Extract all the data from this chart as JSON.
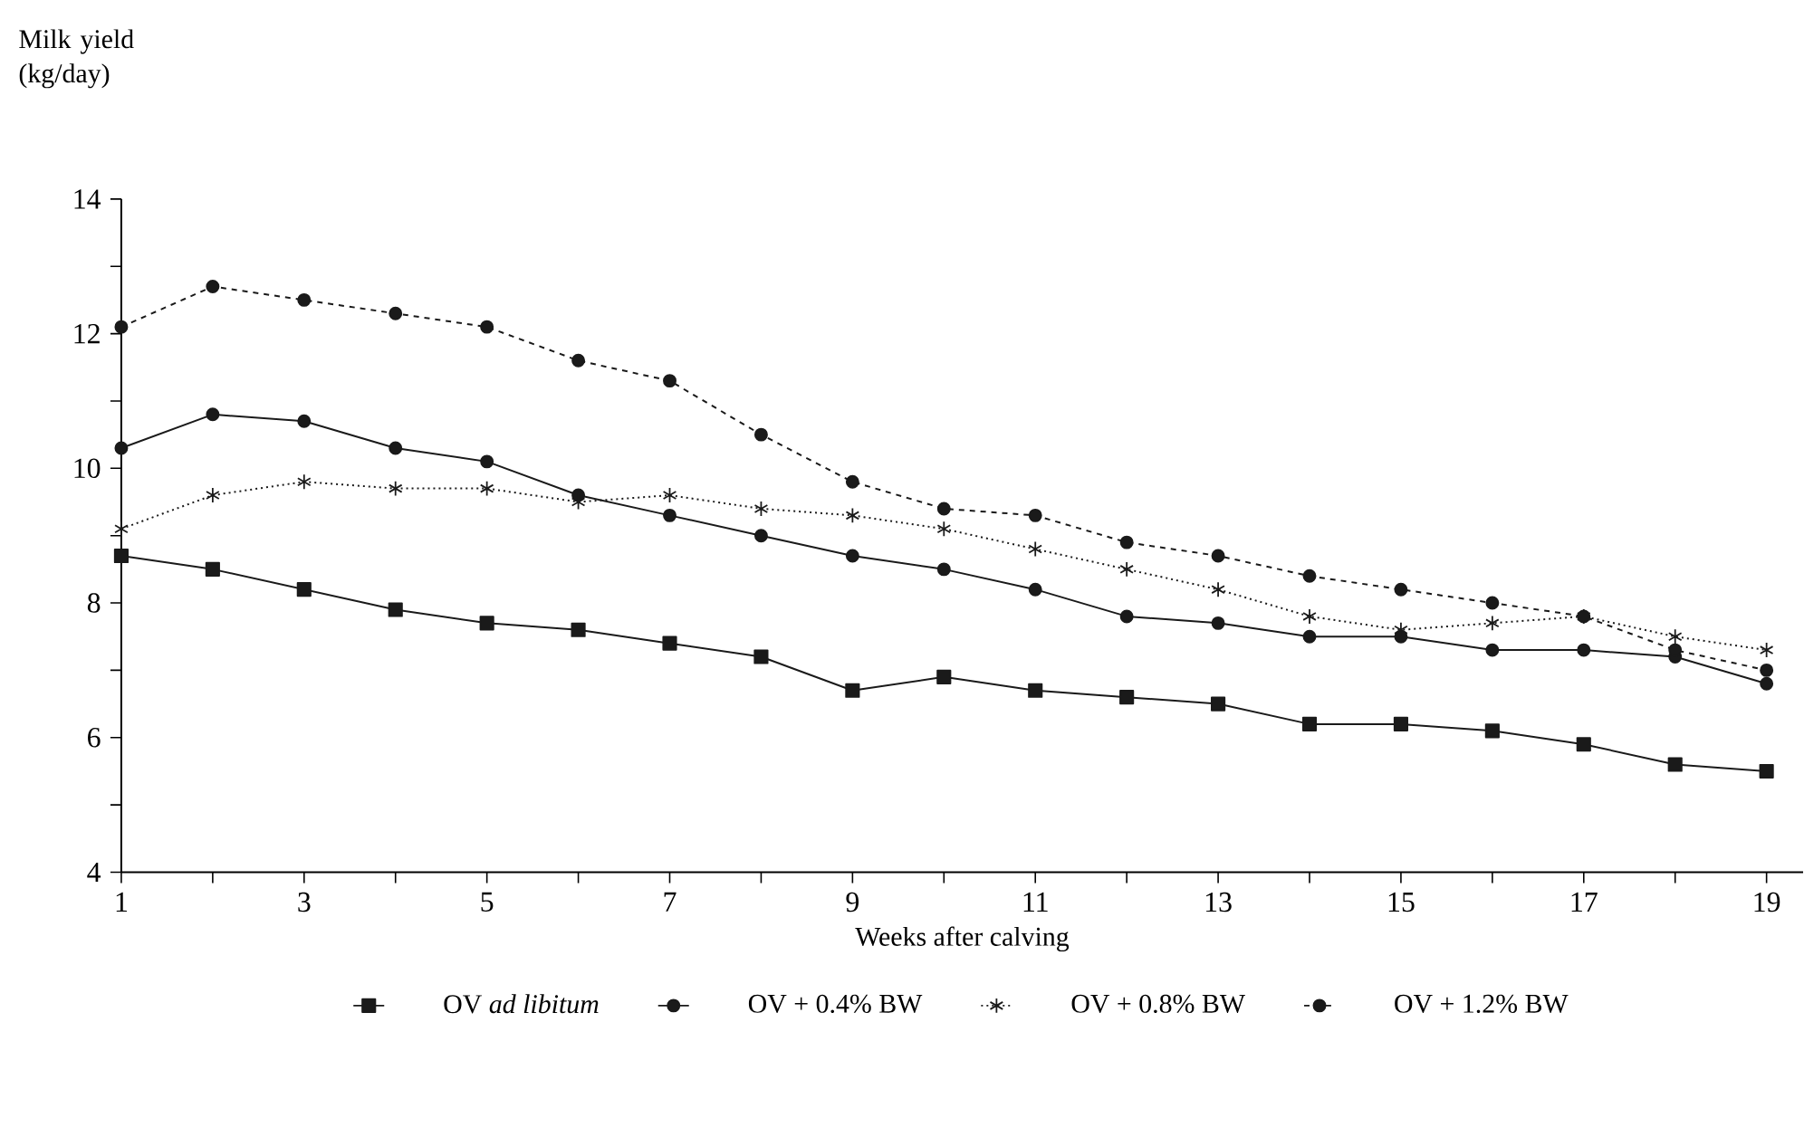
{
  "chart_data": {
    "type": "line",
    "xlabel": "Weeks after calving",
    "ylabel": "Milk yield (kg/day)",
    "x": [
      1,
      2,
      3,
      4,
      5,
      6,
      7,
      8,
      9,
      10,
      11,
      12,
      13,
      14,
      15,
      16,
      17,
      18,
      19
    ],
    "xlim": [
      1,
      19.4
    ],
    "ylim": [
      4,
      14
    ],
    "xticks": [
      1,
      {
        "value": 2,
        "label": null
      },
      3,
      {
        "value": 4,
        "label": null
      },
      5,
      {
        "value": 6,
        "label": null
      },
      7,
      {
        "value": 8,
        "label": null
      },
      9,
      {
        "value": 10,
        "label": null
      },
      11,
      {
        "value": 12,
        "label": null
      },
      13,
      {
        "value": 14,
        "label": null
      },
      15,
      {
        "value": 16,
        "label": null
      },
      17,
      {
        "value": 18,
        "label": null
      },
      19
    ],
    "yticks": [
      4,
      {
        "value": 5,
        "label": null
      },
      6,
      {
        "value": 7,
        "label": null
      },
      8,
      {
        "value": 9,
        "label": null
      },
      10,
      {
        "value": 11,
        "label": null
      },
      12,
      {
        "value": 13,
        "label": null
      },
      14
    ],
    "grid": false,
    "legend": "bottom",
    "series": [
      {
        "name": "OV *ad libitum*",
        "color": "#1a1a1a",
        "marker": "square",
        "line_style": "solid",
        "values": [
          8.7,
          8.5,
          8.2,
          7.9,
          7.7,
          7.6,
          7.4,
          7.2,
          6.7,
          6.9,
          6.7,
          6.6,
          6.5,
          6.2,
          6.2,
          6.1,
          5.9,
          5.6,
          5.5
        ]
      },
      {
        "name": "OV + 0.4% BW",
        "color": "#1a1a1a",
        "marker": "circle",
        "line_style": "solid",
        "values": [
          10.3,
          10.8,
          10.7,
          10.3,
          10.1,
          9.6,
          9.3,
          9.0,
          8.7,
          8.5,
          8.2,
          7.8,
          7.7,
          7.5,
          7.5,
          7.3,
          7.3,
          7.2,
          6.8
        ]
      },
      {
        "name": "OV + 0.8% BW",
        "color": "#1a1a1a",
        "marker": "cross",
        "line_style": "dotted",
        "values": [
          9.1,
          9.6,
          9.8,
          9.7,
          9.7,
          9.5,
          9.6,
          9.4,
          9.3,
          9.1,
          8.8,
          8.5,
          8.2,
          7.8,
          7.6,
          7.7,
          7.8,
          7.5,
          7.3
        ]
      },
      {
        "name": "OV + 1.2% BW",
        "color": "#1a1a1a",
        "marker": "circle",
        "line_style": "dashed",
        "values": [
          12.1,
          12.7,
          12.5,
          12.3,
          12.1,
          11.6,
          11.3,
          10.5,
          9.8,
          9.4,
          9.3,
          8.9,
          8.7,
          8.4,
          8.2,
          8.0,
          7.8,
          7.3,
          7.0
        ]
      }
    ]
  }
}
